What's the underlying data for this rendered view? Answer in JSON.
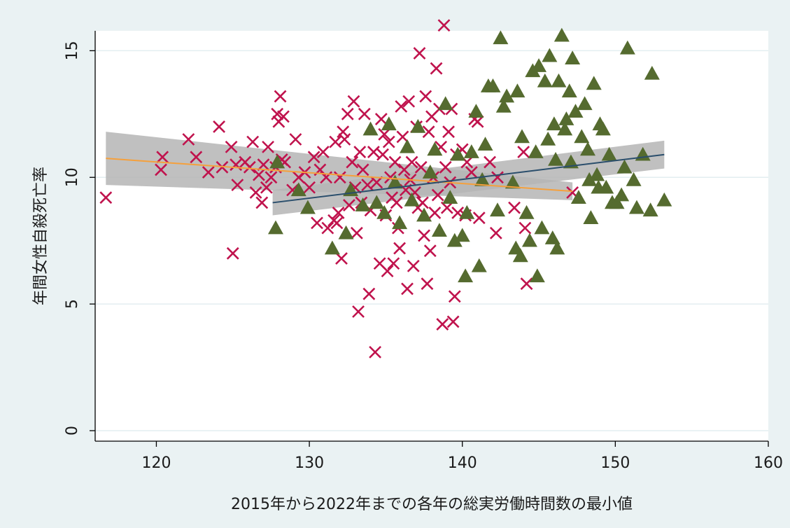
{
  "chart_data": {
    "type": "scatter",
    "title": "",
    "xlabel": "2015年から2022年までの各年の総実労働時間数の最小値",
    "ylabel": "年間女性自殺死亡率",
    "xlim": [
      116,
      160
    ],
    "ylim": [
      0,
      16.2
    ],
    "x_ticks": [
      120,
      130,
      140,
      150,
      160
    ],
    "y_ticks": [
      0,
      5,
      10,
      15
    ],
    "grid": "horizontal",
    "legend": "none",
    "colors": {
      "background": "#eaf2f3",
      "plot_area": "#ffffff",
      "grid": "#e3eef0",
      "x_marker": "#c0134d",
      "triangle_marker": "#556b2f",
      "orange_fit": "#f5a03c",
      "blue_fit": "#2a4e6c",
      "ci_band": "#b5b5b5"
    },
    "series": [
      {
        "marker": "x",
        "color": "#c0134d",
        "points": [
          [
            116.7,
            9.2
          ],
          [
            120.3,
            10.3
          ],
          [
            120.4,
            10.8
          ],
          [
            122.1,
            11.5
          ],
          [
            122.6,
            10.8
          ],
          [
            123.4,
            10.2
          ],
          [
            124.1,
            12.0
          ],
          [
            124.3,
            10.4
          ],
          [
            124.9,
            11.2
          ],
          [
            125.0,
            7.0
          ],
          [
            125.2,
            10.5
          ],
          [
            125.3,
            9.7
          ],
          [
            125.8,
            10.6
          ],
          [
            126.1,
            10.4
          ],
          [
            126.3,
            11.4
          ],
          [
            126.5,
            9.4
          ],
          [
            126.7,
            10.1
          ],
          [
            126.9,
            9.0
          ],
          [
            127.0,
            10.5
          ],
          [
            127.2,
            9.6
          ],
          [
            127.3,
            11.2
          ],
          [
            127.5,
            10.0
          ],
          [
            127.8,
            10.4
          ],
          [
            127.9,
            12.5
          ],
          [
            128.0,
            12.2
          ],
          [
            128.1,
            13.2
          ],
          [
            128.2,
            10.7
          ],
          [
            128.3,
            12.4
          ],
          [
            128.4,
            10.6
          ],
          [
            128.9,
            9.5
          ],
          [
            129.1,
            11.5
          ],
          [
            129.3,
            10.0
          ],
          [
            129.7,
            10.2
          ],
          [
            130.0,
            9.6
          ],
          [
            130.3,
            10.8
          ],
          [
            130.5,
            8.2
          ],
          [
            130.7,
            10.3
          ],
          [
            130.9,
            11.0
          ],
          [
            131.1,
            10.0
          ],
          [
            131.2,
            8.0
          ],
          [
            131.6,
            8.3
          ],
          [
            131.7,
            11.4
          ],
          [
            131.8,
            8.2
          ],
          [
            131.9,
            8.6
          ],
          [
            132.0,
            10.0
          ],
          [
            132.1,
            6.8
          ],
          [
            132.2,
            11.8
          ],
          [
            132.3,
            11.5
          ],
          [
            132.5,
            12.5
          ],
          [
            132.6,
            8.9
          ],
          [
            132.8,
            10.6
          ],
          [
            132.9,
            13.0
          ],
          [
            133.0,
            9.6
          ],
          [
            133.1,
            7.8
          ],
          [
            133.2,
            4.7
          ],
          [
            133.3,
            11.0
          ],
          [
            133.4,
            9.0
          ],
          [
            133.5,
            10.3
          ],
          [
            133.6,
            12.5
          ],
          [
            133.8,
            9.7
          ],
          [
            133.9,
            5.4
          ],
          [
            134.0,
            8.7
          ],
          [
            134.2,
            11.0
          ],
          [
            134.3,
            3.1
          ],
          [
            134.4,
            9.8
          ],
          [
            134.6,
            6.6
          ],
          [
            134.7,
            12.3
          ],
          [
            134.8,
            10.9
          ],
          [
            134.9,
            11.7
          ],
          [
            135.0,
            8.5
          ],
          [
            135.1,
            6.3
          ],
          [
            135.2,
            11.4
          ],
          [
            135.3,
            10.0
          ],
          [
            135.4,
            9.2
          ],
          [
            135.5,
            6.6
          ],
          [
            135.6,
            10.6
          ],
          [
            135.7,
            9.0
          ],
          [
            135.8,
            8.0
          ],
          [
            135.9,
            7.2
          ],
          [
            136.0,
            12.8
          ],
          [
            136.1,
            11.6
          ],
          [
            136.2,
            10.3
          ],
          [
            136.3,
            9.5
          ],
          [
            136.4,
            5.6
          ],
          [
            136.5,
            13.0
          ],
          [
            136.6,
            9.9
          ],
          [
            136.7,
            10.6
          ],
          [
            136.8,
            6.5
          ],
          [
            136.9,
            9.4
          ],
          [
            137.0,
            12.0
          ],
          [
            137.1,
            8.8
          ],
          [
            137.2,
            14.9
          ],
          [
            137.3,
            10.4
          ],
          [
            137.4,
            9.0
          ],
          [
            137.5,
            7.7
          ],
          [
            137.6,
            13.2
          ],
          [
            137.7,
            5.8
          ],
          [
            137.8,
            11.8
          ],
          [
            137.9,
            7.1
          ],
          [
            138.0,
            12.4
          ],
          [
            138.1,
            10.0
          ],
          [
            138.2,
            8.6
          ],
          [
            138.3,
            14.3
          ],
          [
            138.4,
            9.3
          ],
          [
            138.5,
            12.7
          ],
          [
            138.6,
            11.2
          ],
          [
            138.7,
            4.2
          ],
          [
            138.8,
            16.0
          ],
          [
            138.9,
            10.4
          ],
          [
            139.0,
            8.8
          ],
          [
            139.1,
            11.8
          ],
          [
            139.2,
            9.8
          ],
          [
            139.3,
            12.7
          ],
          [
            139.4,
            4.3
          ],
          [
            139.5,
            5.3
          ],
          [
            139.6,
            10.9
          ],
          [
            139.7,
            8.6
          ],
          [
            140.0,
            11.1
          ],
          [
            140.2,
            8.5
          ],
          [
            140.3,
            10.6
          ],
          [
            140.6,
            10.2
          ],
          [
            140.8,
            12.3
          ],
          [
            141.0,
            12.2
          ],
          [
            141.1,
            8.4
          ],
          [
            141.8,
            10.6
          ],
          [
            142.2,
            7.8
          ],
          [
            142.3,
            10.0
          ],
          [
            143.4,
            8.8
          ],
          [
            144.0,
            11.0
          ],
          [
            144.1,
            8.0
          ],
          [
            144.2,
            5.8
          ],
          [
            147.2,
            9.4
          ]
        ]
      },
      {
        "marker": "triangle",
        "color": "#556b2f",
        "points": [
          [
            127.8,
            8.0
          ],
          [
            127.9,
            10.6
          ],
          [
            129.3,
            9.5
          ],
          [
            129.9,
            8.8
          ],
          [
            131.5,
            7.2
          ],
          [
            132.4,
            7.8
          ],
          [
            132.7,
            9.5
          ],
          [
            133.5,
            8.9
          ],
          [
            134.0,
            11.9
          ],
          [
            134.4,
            9.0
          ],
          [
            134.9,
            8.6
          ],
          [
            135.2,
            12.1
          ],
          [
            135.6,
            9.8
          ],
          [
            135.9,
            8.2
          ],
          [
            136.4,
            11.2
          ],
          [
            136.7,
            9.1
          ],
          [
            137.1,
            12.0
          ],
          [
            137.5,
            8.5
          ],
          [
            137.9,
            10.2
          ],
          [
            138.2,
            11.1
          ],
          [
            138.5,
            7.9
          ],
          [
            138.9,
            12.9
          ],
          [
            139.2,
            9.2
          ],
          [
            139.5,
            7.5
          ],
          [
            139.7,
            10.9
          ],
          [
            140.0,
            7.7
          ],
          [
            140.2,
            6.1
          ],
          [
            140.3,
            8.6
          ],
          [
            140.6,
            11.0
          ],
          [
            140.9,
            12.6
          ],
          [
            141.1,
            6.5
          ],
          [
            141.3,
            9.9
          ],
          [
            141.5,
            11.3
          ],
          [
            141.7,
            13.6
          ],
          [
            142.0,
            13.6
          ],
          [
            142.3,
            8.7
          ],
          [
            142.5,
            15.5
          ],
          [
            142.7,
            12.8
          ],
          [
            142.9,
            13.2
          ],
          [
            143.3,
            9.8
          ],
          [
            143.5,
            7.2
          ],
          [
            143.6,
            13.4
          ],
          [
            143.8,
            6.9
          ],
          [
            143.9,
            11.6
          ],
          [
            144.2,
            8.6
          ],
          [
            144.4,
            7.5
          ],
          [
            144.6,
            14.2
          ],
          [
            144.8,
            11.0
          ],
          [
            144.9,
            6.1
          ],
          [
            145.0,
            14.4
          ],
          [
            145.2,
            8.0
          ],
          [
            145.4,
            13.8
          ],
          [
            145.6,
            11.5
          ],
          [
            145.7,
            14.8
          ],
          [
            145.9,
            7.6
          ],
          [
            146.0,
            12.1
          ],
          [
            146.1,
            10.7
          ],
          [
            146.2,
            7.2
          ],
          [
            146.3,
            13.8
          ],
          [
            146.5,
            15.6
          ],
          [
            146.7,
            11.9
          ],
          [
            146.8,
            12.3
          ],
          [
            147.0,
            13.4
          ],
          [
            147.1,
            10.6
          ],
          [
            147.2,
            14.7
          ],
          [
            147.4,
            12.6
          ],
          [
            147.6,
            9.2
          ],
          [
            147.8,
            11.6
          ],
          [
            148.0,
            12.9
          ],
          [
            148.2,
            11.1
          ],
          [
            148.3,
            9.9
          ],
          [
            148.4,
            8.4
          ],
          [
            148.6,
            13.7
          ],
          [
            148.8,
            10.1
          ],
          [
            148.9,
            9.6
          ],
          [
            149.0,
            12.1
          ],
          [
            149.2,
            11.9
          ],
          [
            149.4,
            9.6
          ],
          [
            149.6,
            10.9
          ],
          [
            149.8,
            9.0
          ],
          [
            150.1,
            9.0
          ],
          [
            150.4,
            9.3
          ],
          [
            150.6,
            10.4
          ],
          [
            150.8,
            15.1
          ],
          [
            151.2,
            9.9
          ],
          [
            151.4,
            8.8
          ],
          [
            151.8,
            10.9
          ],
          [
            152.3,
            8.7
          ],
          [
            152.4,
            14.1
          ],
          [
            153.2,
            9.1
          ]
        ]
      }
    ],
    "fits": [
      {
        "color": "#f5a03c",
        "x": [
          116.7,
          147.2
        ],
        "y": [
          10.75,
          9.45
        ],
        "ci_lower": [
          9.7,
          9.1
        ],
        "ci_upper": [
          11.8,
          9.8
        ]
      },
      {
        "color": "#2a4e6c",
        "x": [
          127.6,
          153.2
        ],
        "y": [
          9.0,
          10.9
        ],
        "ci_lower": [
          8.5,
          10.35
        ],
        "ci_upper": [
          9.5,
          11.45
        ]
      }
    ]
  }
}
